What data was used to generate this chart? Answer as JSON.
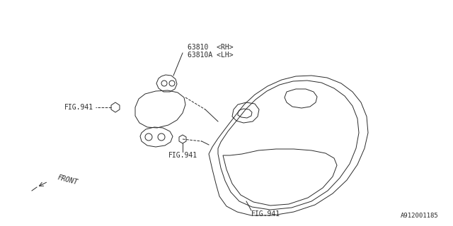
{
  "bg_color": "#ffffff",
  "line_color": "#2a2a2a",
  "text_color": "#2a2a2a",
  "label_63810": "63810  <RH>",
  "label_63810A": "63810A <LH>",
  "label_fig941_left": "FIG.941",
  "label_fig941_mid": "FIG.941",
  "label_fig941_bot": "FIG.941",
  "label_front": "FRONT",
  "label_part_num": "A912001185",
  "figsize": [
    6.4,
    3.2
  ],
  "dpi": 100
}
